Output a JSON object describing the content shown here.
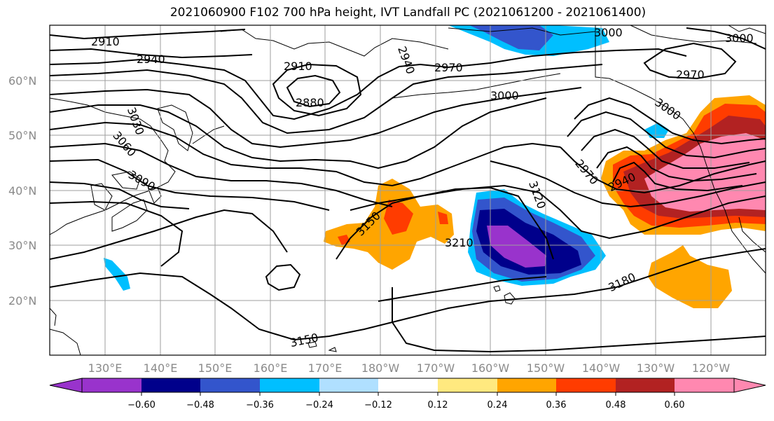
{
  "title": "2021060900 F102 700 hPa height, IVT Landfall PC (2021061200 - 2021061400)",
  "map": {
    "lat_ticks": [
      "60°N",
      "50°N",
      "40°N",
      "30°N",
      "20°N"
    ],
    "lon_ticks": [
      "130°E",
      "140°E",
      "150°E",
      "160°E",
      "170°E",
      "180°W",
      "170°W",
      "160°W",
      "150°W",
      "140°W",
      "130°W",
      "120°W"
    ],
    "contour_labels": [
      "2910",
      "2940",
      "2910",
      "2880",
      "2940",
      "2970",
      "3000",
      "3000",
      "3000",
      "2970",
      "3030",
      "3060",
      "3090",
      "3000",
      "2970",
      "2940",
      "3120",
      "3150",
      "3210",
      "3180",
      "3150"
    ],
    "colors": {
      "land_outline": "#000000",
      "grid": "#9e9e9e",
      "contour": "#000000"
    }
  },
  "colorbar": {
    "colors": [
      "#9933cc",
      "#00008b",
      "#3355cc",
      "#00bfff",
      "#b0e0ff",
      "#ffffff",
      "#ffe97f",
      "#ffa500",
      "#ff3c00",
      "#b22222",
      "#ff88b0"
    ],
    "tick_labels": [
      "−0.60",
      "−0.48",
      "−0.36",
      "−0.24",
      "−0.12",
      "0.12",
      "0.24",
      "0.36",
      "0.48",
      "0.60"
    ]
  }
}
